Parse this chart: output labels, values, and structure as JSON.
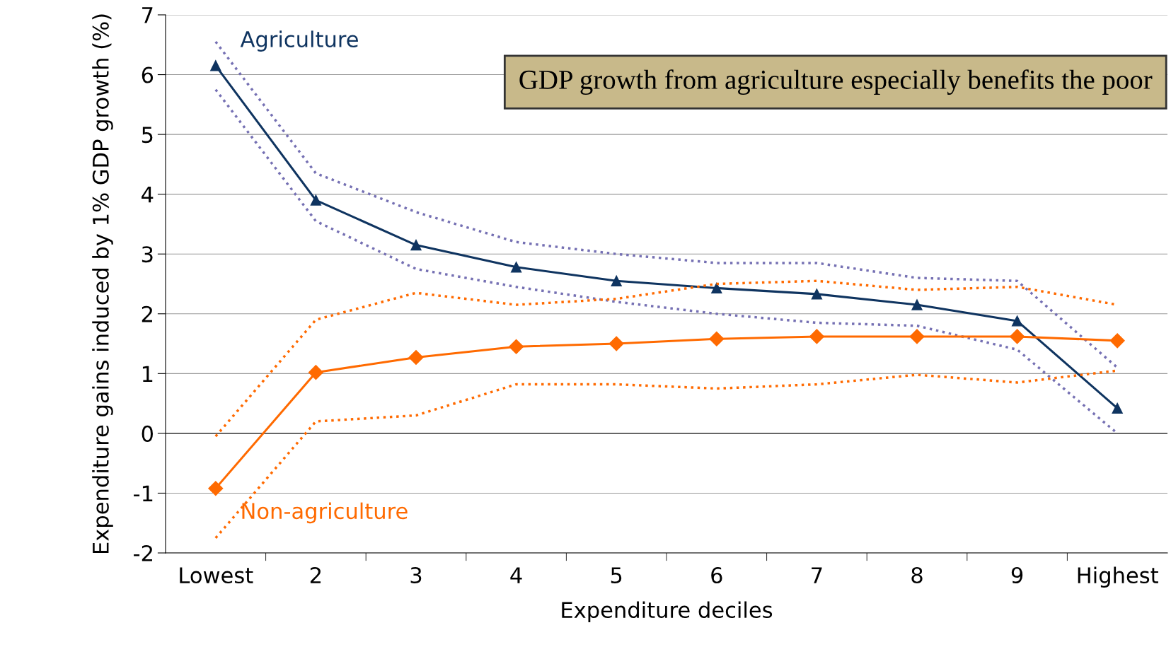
{
  "chart_data": {
    "type": "line",
    "title": "GDP growth from agriculture especially benefits the poor",
    "xlabel": "Expenditure deciles",
    "ylabel": "Expenditure gains induced by 1% GDP growth (%)",
    "categories": [
      "Lowest",
      "2",
      "3",
      "4",
      "5",
      "6",
      "7",
      "8",
      "9",
      "Highest"
    ],
    "series": [
      {
        "name": "Agriculture",
        "color": "#0f3460",
        "marker": "triangle",
        "line_style": "solid",
        "values": [
          6.15,
          3.9,
          3.15,
          2.78,
          2.55,
          2.43,
          2.33,
          2.15,
          1.88,
          0.42
        ]
      },
      {
        "color": "#7570b3",
        "marker": "none",
        "line_style": "dotted",
        "values": [
          6.55,
          4.35,
          3.7,
          3.2,
          3.0,
          2.85,
          2.85,
          2.6,
          2.55,
          1.1
        ]
      },
      {
        "color": "#7570b3",
        "marker": "none",
        "line_style": "dotted",
        "values": [
          5.75,
          3.55,
          2.75,
          2.45,
          2.2,
          2.0,
          1.85,
          1.8,
          1.4,
          0.0
        ]
      },
      {
        "name": "Non-agriculture",
        "color": "#ff6a00",
        "marker": "diamond",
        "line_style": "solid",
        "values": [
          -0.92,
          1.02,
          1.27,
          1.45,
          1.5,
          1.58,
          1.62,
          1.62,
          1.62,
          1.55
        ]
      },
      {
        "color": "#ff6a00",
        "marker": "none",
        "line_style": "dotted",
        "values": [
          -0.05,
          1.9,
          2.35,
          2.15,
          2.25,
          2.5,
          2.55,
          2.4,
          2.45,
          2.15
        ]
      },
      {
        "color": "#ff6a00",
        "marker": "none",
        "line_style": "dotted",
        "values": [
          -1.75,
          0.2,
          0.3,
          0.82,
          0.82,
          0.75,
          0.82,
          0.98,
          0.85,
          1.05
        ]
      }
    ],
    "ylim": [
      -2,
      7
    ],
    "yticks": [
      -2,
      -1,
      0,
      1,
      2,
      3,
      4,
      5,
      6,
      7
    ],
    "grid": "y",
    "legend": false
  }
}
